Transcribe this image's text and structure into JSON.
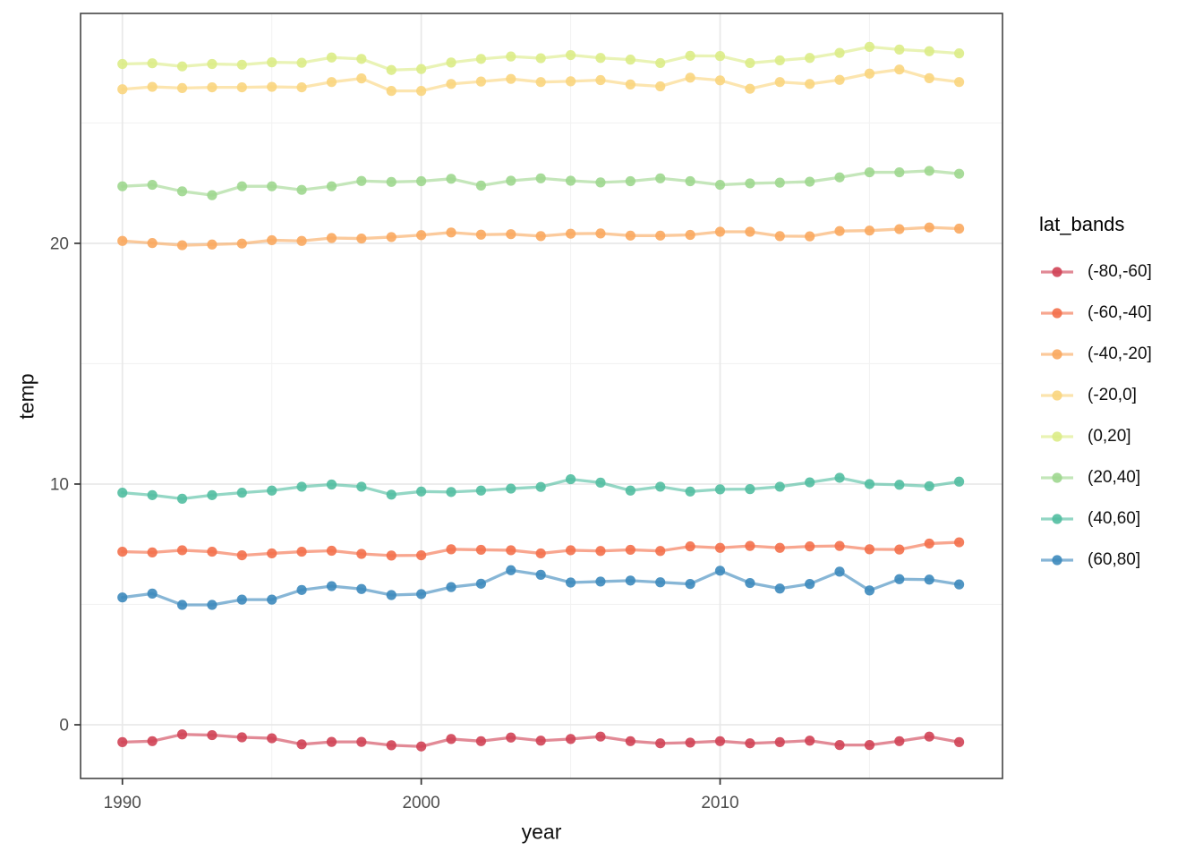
{
  "chart_data": {
    "type": "line",
    "title": "",
    "xlabel": "year",
    "ylabel": "temp",
    "legend_title": "lat_bands",
    "legend_position": "right",
    "grid": "major and minor gridlines, light gray on white panel, dark panel border",
    "xlim": [
      1988.6,
      2019.45
    ],
    "ylim": [
      -2.23,
      29.55
    ],
    "x_ticks": [
      {
        "value": 1990,
        "label": "1990"
      },
      {
        "value": 2000,
        "label": "2000"
      },
      {
        "value": 2010,
        "label": "2010"
      }
    ],
    "x_minor_ticks": [
      1995,
      2005,
      2015
    ],
    "y_ticks": [
      {
        "value": 0,
        "label": "0"
      },
      {
        "value": 10,
        "label": "10"
      },
      {
        "value": 20,
        "label": "20"
      }
    ],
    "y_minor_ticks": [
      5,
      15,
      25
    ],
    "x": [
      1990,
      1991,
      1992,
      1993,
      1994,
      1995,
      1996,
      1997,
      1998,
      1999,
      2000,
      2001,
      2002,
      2003,
      2004,
      2005,
      2006,
      2007,
      2008,
      2009,
      2010,
      2011,
      2012,
      2013,
      2014,
      2015,
      2016,
      2017,
      2018
    ],
    "series": [
      {
        "name": "(-80,-60]",
        "color": "#d04255",
        "values": [
          -0.72,
          -0.68,
          -0.4,
          -0.43,
          -0.52,
          -0.56,
          -0.81,
          -0.71,
          -0.71,
          -0.85,
          -0.9,
          -0.59,
          -0.68,
          -0.53,
          -0.66,
          -0.59,
          -0.49,
          -0.68,
          -0.77,
          -0.74,
          -0.68,
          -0.77,
          -0.72,
          -0.66,
          -0.84,
          -0.84,
          -0.68,
          -0.49,
          -0.72
        ]
      },
      {
        "name": "(-60,-40]",
        "color": "#f3704b",
        "values": [
          7.19,
          7.16,
          7.25,
          7.19,
          7.04,
          7.12,
          7.19,
          7.23,
          7.1,
          7.03,
          7.04,
          7.29,
          7.27,
          7.25,
          7.12,
          7.25,
          7.22,
          7.27,
          7.22,
          7.41,
          7.35,
          7.43,
          7.35,
          7.41,
          7.43,
          7.29,
          7.28,
          7.53,
          7.58
        ]
      },
      {
        "name": "(-40,-20]",
        "color": "#f9a95f",
        "values": [
          20.1,
          20.01,
          19.92,
          19.95,
          19.99,
          20.13,
          20.1,
          20.22,
          20.2,
          20.26,
          20.34,
          20.45,
          20.36,
          20.38,
          20.3,
          20.4,
          20.41,
          20.32,
          20.32,
          20.35,
          20.48,
          20.48,
          20.3,
          20.29,
          20.51,
          20.53,
          20.59,
          20.66,
          20.61
        ]
      },
      {
        "name": "(-20,0]",
        "color": "#fad57e",
        "values": [
          26.4,
          26.5,
          26.45,
          26.48,
          26.48,
          26.5,
          26.48,
          26.7,
          26.85,
          26.33,
          26.33,
          26.62,
          26.72,
          26.83,
          26.7,
          26.73,
          26.78,
          26.6,
          26.52,
          26.88,
          26.77,
          26.42,
          26.7,
          26.62,
          26.79,
          27.05,
          27.22,
          26.86,
          26.7
        ]
      },
      {
        "name": "(0,20]",
        "color": "#dcec87",
        "values": [
          27.45,
          27.48,
          27.35,
          27.45,
          27.42,
          27.52,
          27.5,
          27.72,
          27.66,
          27.2,
          27.24,
          27.51,
          27.66,
          27.76,
          27.69,
          27.82,
          27.7,
          27.63,
          27.49,
          27.79,
          27.78,
          27.49,
          27.6,
          27.7,
          27.91,
          28.16,
          28.05,
          27.98,
          27.89
        ]
      },
      {
        "name": "(20,40]",
        "color": "#9fd78f",
        "values": [
          22.37,
          22.43,
          22.16,
          22.0,
          22.37,
          22.37,
          22.22,
          22.37,
          22.59,
          22.55,
          22.58,
          22.68,
          22.4,
          22.6,
          22.7,
          22.6,
          22.53,
          22.58,
          22.7,
          22.58,
          22.43,
          22.49,
          22.52,
          22.56,
          22.74,
          22.95,
          22.95,
          23.01,
          22.89
        ]
      },
      {
        "name": "(40,60]",
        "color": "#52bea1",
        "values": [
          9.64,
          9.54,
          9.39,
          9.54,
          9.64,
          9.73,
          9.89,
          9.98,
          9.89,
          9.56,
          9.69,
          9.67,
          9.73,
          9.81,
          9.88,
          10.2,
          10.06,
          9.73,
          9.89,
          9.69,
          9.78,
          9.79,
          9.89,
          10.07,
          10.26,
          10.0,
          9.97,
          9.91,
          10.1
        ]
      },
      {
        "name": "(60,80]",
        "color": "#3d89bd",
        "values": [
          5.29,
          5.45,
          4.98,
          4.98,
          5.2,
          5.2,
          5.6,
          5.76,
          5.64,
          5.39,
          5.43,
          5.72,
          5.86,
          6.42,
          6.23,
          5.91,
          5.95,
          5.99,
          5.92,
          5.85,
          6.4,
          5.89,
          5.66,
          5.85,
          6.36,
          5.58,
          6.05,
          6.03,
          5.83
        ]
      }
    ]
  }
}
